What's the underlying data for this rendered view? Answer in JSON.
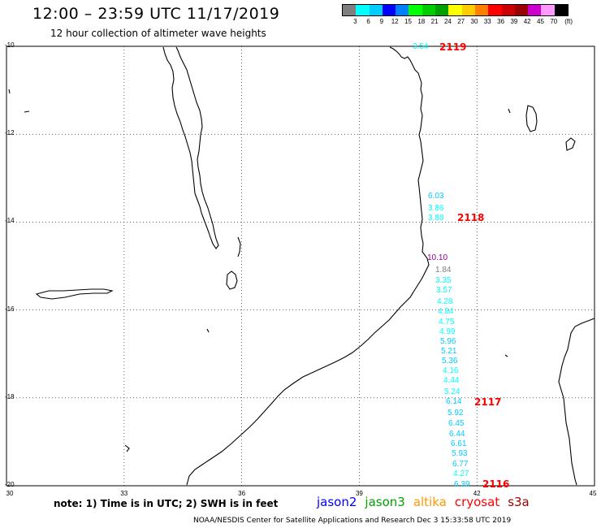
{
  "header": {
    "title": "12:00 – 23:59 UTC 11/17/2019",
    "subtitle": "12 hour collection of altimeter wave heights"
  },
  "scale": {
    "colors": [
      "#7f7f7f",
      "#00ffff",
      "#00ccff",
      "#0000ff",
      "#0080ff",
      "#00ff00",
      "#00cc00",
      "#00a000",
      "#ffff00",
      "#ffcc00",
      "#ff8000",
      "#ff0000",
      "#cc0000",
      "#990000",
      "#cc00cc",
      "#ff99ff",
      "#000000"
    ],
    "labels": [
      "3",
      "6",
      "9",
      "12",
      "15",
      "18",
      "21",
      "24",
      "27",
      "30",
      "33",
      "36",
      "39",
      "42",
      "45",
      "70",
      "(ft)"
    ]
  },
  "axes": {
    "lat_labels": [
      "-10",
      "-12",
      "-14",
      "-16",
      "-18",
      "-20"
    ],
    "lon_labels": [
      "30",
      "33",
      "36",
      "39",
      "42",
      "45"
    ]
  },
  "map": {
    "projection": "equirectangular",
    "lon_range": [
      30,
      45
    ],
    "lat_range": [
      -20,
      -10
    ],
    "grid": "dotted"
  },
  "annotations": {
    "wave_heights": [
      {
        "value": "3.54",
        "color": "#00ffff"
      },
      {
        "value": "6.03",
        "color": "#00ccff"
      },
      {
        "value": "3.86",
        "color": "#00ffff"
      },
      {
        "value": "3.88",
        "color": "#00ffff"
      },
      {
        "value": "10.10",
        "color": "#990099"
      },
      {
        "value": "1.84",
        "color": "#7f7f7f"
      },
      {
        "value": "3.35",
        "color": "#00ffff"
      },
      {
        "value": "3.57",
        "color": "#00ffff"
      },
      {
        "value": "4.28",
        "color": "#00ffff"
      },
      {
        "value": "4.84",
        "color": "#00ffff"
      },
      {
        "value": "4.75",
        "color": "#00ffff"
      },
      {
        "value": "4.99",
        "color": "#00ffff"
      },
      {
        "value": "5.96",
        "color": "#00ccff"
      },
      {
        "value": "5.21",
        "color": "#00ccff"
      },
      {
        "value": "5.36",
        "color": "#00ccff"
      },
      {
        "value": "4.16",
        "color": "#00ffff"
      },
      {
        "value": "4.44",
        "color": "#00ffff"
      },
      {
        "value": "5.24",
        "color": "#00ffff"
      },
      {
        "value": "6.14",
        "color": "#00ccff"
      },
      {
        "value": "5.92",
        "color": "#00ccff"
      },
      {
        "value": "6.45",
        "color": "#00ccff"
      },
      {
        "value": "6.44",
        "color": "#00ccff"
      },
      {
        "value": "6.61",
        "color": "#00ccff"
      },
      {
        "value": "5.93",
        "color": "#00ccff"
      },
      {
        "value": "6.77",
        "color": "#00ccff"
      },
      {
        "value": "4.27",
        "color": "#00ffff"
      },
      {
        "value": "6.39",
        "color": "#00ccff"
      }
    ],
    "passes": [
      "2119",
      "2118",
      "2117",
      "2116"
    ]
  },
  "legend": {
    "note": "note: 1) Time is in UTC; 2) SWH is in feet",
    "satellites": [
      {
        "name": "jason2",
        "color": "#0000ff"
      },
      {
        "name": "jason3",
        "color": "#00a000"
      },
      {
        "name": "altika",
        "color": "#ff9900"
      },
      {
        "name": "cryosat",
        "color": "#ff0000"
      },
      {
        "name": "s3a",
        "color": "#990000"
      }
    ]
  },
  "footer": "NOAA/NESDIS Center for Satellite Applications and Research   Dec  3 15:33:58 UTC 2019"
}
